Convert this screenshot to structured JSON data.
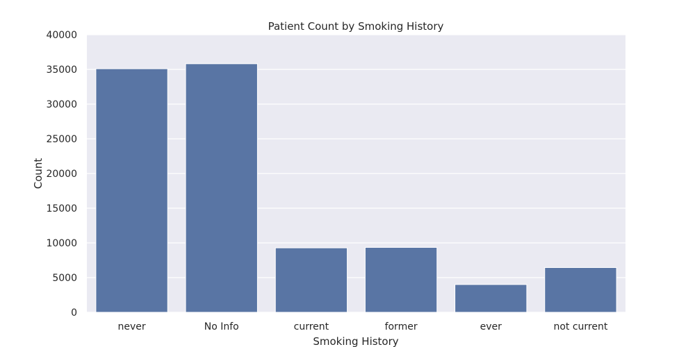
{
  "chart_data": {
    "type": "bar",
    "title": "Patient Count by Smoking History",
    "xlabel": "Smoking History",
    "ylabel": "Count",
    "categories": [
      "never",
      "No Info",
      "current",
      "former",
      "ever",
      "not current"
    ],
    "values": [
      35095,
      35816,
      9286,
      9352,
      4004,
      6447
    ],
    "ylim": [
      0,
      40000
    ],
    "yticks": [
      "0",
      "5000",
      "10000",
      "15000",
      "20000",
      "25000",
      "30000",
      "35000",
      "40000"
    ],
    "grid": true,
    "colors": {
      "bar": "#5975a4",
      "plot_background": "#eaeaf2",
      "grid": "#ffffff",
      "text": "#262626"
    }
  }
}
